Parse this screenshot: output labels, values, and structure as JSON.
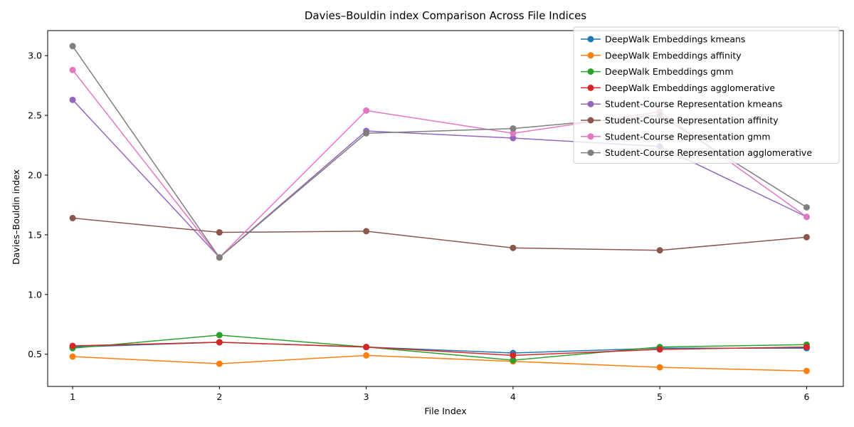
{
  "chart_data": {
    "type": "line",
    "title": "Davies–Bouldin index Comparison Across File Indices",
    "xlabel": "File Index",
    "ylabel": "Davies–Bouldin index",
    "x": [
      1,
      2,
      3,
      4,
      5,
      6
    ],
    "xticks": [
      "1",
      "2",
      "3",
      "4",
      "5",
      "6"
    ],
    "yticks": [
      0.5,
      1.0,
      1.5,
      2.0,
      2.5,
      3.0
    ],
    "ytick_labels": [
      "0.5",
      "1.0",
      "1.5",
      "2.0",
      "2.5",
      "3.0"
    ],
    "xlim": [
      0.83,
      6.25
    ],
    "ylim": [
      0.23,
      3.21
    ],
    "grid": false,
    "legend_position": "top-right",
    "series": [
      {
        "name": "DeepWalk Embeddings kmeans",
        "color": "#1f77b4",
        "values": [
          0.56,
          0.6,
          0.56,
          0.51,
          0.55,
          0.55
        ]
      },
      {
        "name": "DeepWalk Embeddings affinity",
        "color": "#ff7f0e",
        "values": [
          0.48,
          0.42,
          0.49,
          0.44,
          0.39,
          0.36
        ]
      },
      {
        "name": "DeepWalk Embeddings gmm",
        "color": "#2ca02c",
        "values": [
          0.55,
          0.66,
          0.56,
          0.45,
          0.56,
          0.58
        ]
      },
      {
        "name": "DeepWalk Embeddings agglomerative",
        "color": "#d62728",
        "values": [
          0.57,
          0.6,
          0.56,
          0.49,
          0.54,
          0.56
        ]
      },
      {
        "name": "Student-Course Representation kmeans",
        "color": "#9467bd",
        "values": [
          2.63,
          1.31,
          2.37,
          2.31,
          2.24,
          1.65
        ]
      },
      {
        "name": "Student-Course Representation affinity",
        "color": "#8c564b",
        "values": [
          1.64,
          1.52,
          1.53,
          1.39,
          1.37,
          1.48
        ]
      },
      {
        "name": "Student-Course Representation gmm",
        "color": "#e377c2",
        "values": [
          2.88,
          1.31,
          2.54,
          2.35,
          2.53,
          1.65
        ]
      },
      {
        "name": "Student-Course Representation agglomerative",
        "color": "#7f7f7f",
        "values": [
          3.08,
          1.31,
          2.35,
          2.39,
          2.5,
          1.73
        ]
      }
    ]
  }
}
